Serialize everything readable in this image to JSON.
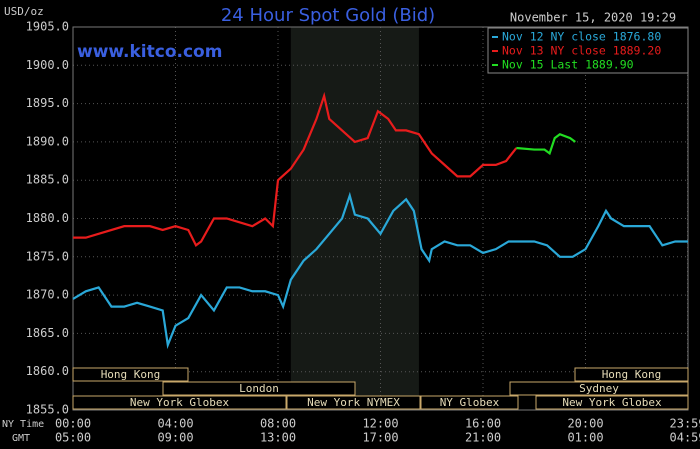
{
  "chart_data": {
    "type": "line",
    "title": "24 Hour Spot Gold (Bid)",
    "website": "www.kitco.com",
    "timestamp": "November 15, 2020 19:29",
    "y_label": "USD/oz",
    "x_row_labels": [
      "NY Time",
      "GMT"
    ],
    "xlim": [
      0,
      24
    ],
    "ylim": [
      1855,
      1905
    ],
    "xticks": [
      {
        "value": 0,
        "label": "00:00"
      },
      {
        "value": 4,
        "label": "04:00"
      },
      {
        "value": 8,
        "label": "08:00"
      },
      {
        "value": 12,
        "label": "12:00"
      },
      {
        "value": 16,
        "label": "16:00"
      },
      {
        "value": 20,
        "label": "20:00"
      },
      {
        "value": 23.983,
        "label": "23:59"
      }
    ],
    "gmt_labels": [
      "05:00",
      "09:00",
      "13:00",
      "17:00",
      "21:00",
      "01:00",
      "04:59"
    ],
    "yticks": [
      {
        "value": 1855,
        "label": "1855.0"
      },
      {
        "value": 1860,
        "label": "1860.0"
      },
      {
        "value": 1865,
        "label": "1865.0"
      },
      {
        "value": 1870,
        "label": "1870.0"
      },
      {
        "value": 1875,
        "label": "1875.0"
      },
      {
        "value": 1880,
        "label": "1880.0"
      },
      {
        "value": 1885,
        "label": "1885.0"
      },
      {
        "value": 1890,
        "label": "1890.0"
      },
      {
        "value": 1895,
        "label": "1895.0"
      },
      {
        "value": 1900,
        "label": "1900.0"
      },
      {
        "value": 1905,
        "label": "1905.0"
      }
    ],
    "grid": true,
    "highlight_x": [
      8.5,
      13.5
    ],
    "sessions": [
      "Hong Kong",
      "Hong Kong",
      "London",
      "Sydney",
      "New York Globex",
      "New York NYMEX",
      "NY Globex",
      "New York Globex"
    ],
    "series": [
      {
        "name": "Nov 12 NY close 1876.80",
        "color": "#2aa8d8",
        "x": [
          0,
          0.5,
          1,
          1.5,
          2,
          2.5,
          3,
          3.5,
          3.7,
          4,
          4.5,
          5,
          5.5,
          6,
          6.5,
          7,
          7.5,
          8,
          8.2,
          8.5,
          9,
          9.5,
          10,
          10.5,
          10.8,
          11,
          11.5,
          12,
          12.5,
          13,
          13.3,
          13.6,
          13.9,
          14,
          14.5,
          15,
          15.5,
          16,
          16.5,
          17,
          18,
          18.5,
          19,
          19.5,
          20,
          20.5,
          20.8,
          21,
          21.5,
          22,
          22.5,
          23,
          23.5,
          24
        ],
        "values": [
          1869.5,
          1870.5,
          1871,
          1868.5,
          1868.5,
          1869,
          1868.5,
          1868,
          1863.5,
          1866,
          1867,
          1870,
          1868,
          1871,
          1871,
          1870.5,
          1870.5,
          1870,
          1868.5,
          1872,
          1874.5,
          1876,
          1878,
          1880,
          1883,
          1880.5,
          1880,
          1878,
          1881,
          1882.5,
          1881,
          1876,
          1874.5,
          1876,
          1877,
          1876.5,
          1876.5,
          1875.5,
          1876,
          1877,
          1877,
          1876.5,
          1875,
          1875,
          1876,
          1879,
          1881,
          1880,
          1879,
          1879,
          1879,
          1876.5,
          1877,
          1877
        ]
      },
      {
        "name": "Nov 13 NY close 1889.20",
        "color": "#e81c1c",
        "x": [
          0,
          0.5,
          1,
          2,
          3,
          3.5,
          4,
          4.5,
          4.8,
          5,
          5.5,
          6,
          6.5,
          7,
          7.5,
          7.8,
          8,
          8.5,
          9,
          9.5,
          9.8,
          10,
          10.5,
          11,
          11.5,
          11.9,
          12.3,
          12.6,
          13,
          13.5,
          14,
          14.5,
          15,
          15.5,
          16,
          16.5,
          16.9,
          17.3
        ],
        "values": [
          1877.5,
          1877.5,
          1878,
          1879,
          1879,
          1878.5,
          1879,
          1878.5,
          1876.5,
          1877,
          1880,
          1880,
          1879.5,
          1879,
          1880,
          1879,
          1885,
          1886.5,
          1889,
          1893,
          1896,
          1893,
          1891.5,
          1890,
          1890.5,
          1894,
          1893,
          1891.5,
          1891.5,
          1891,
          1888.5,
          1887,
          1885.5,
          1885.5,
          1887,
          1887,
          1887.5,
          1889.2
        ]
      },
      {
        "name": "Nov 15 Last 1889.90",
        "color": "#22dd22",
        "x": [
          17.3,
          18,
          18.4,
          18.6,
          18.8,
          19,
          19.4,
          19.6
        ],
        "values": [
          1889.2,
          1889,
          1889,
          1888.5,
          1890.5,
          1891,
          1890.5,
          1890
        ]
      }
    ]
  }
}
